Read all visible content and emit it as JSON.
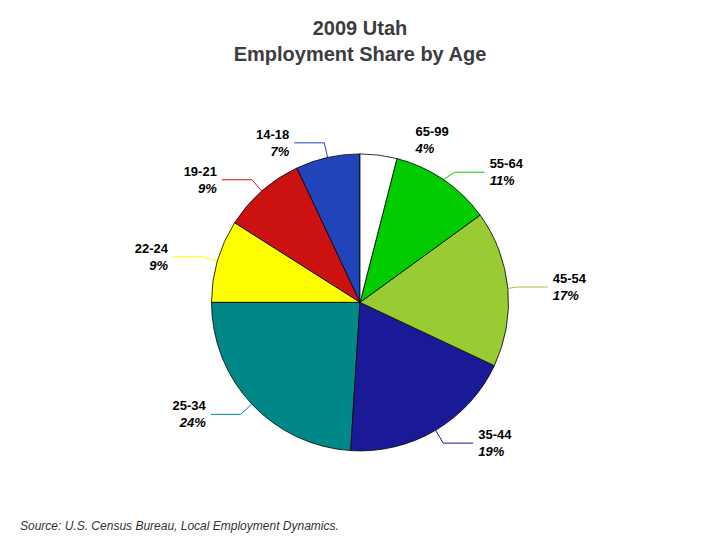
{
  "chart_data": {
    "type": "pie",
    "title": "2009 Utah\nEmployment Share by Age",
    "categories": [
      "14-18",
      "19-21",
      "22-24",
      "25-34",
      "35-44",
      "45-54",
      "55-64",
      "65-99"
    ],
    "values": [
      7,
      9,
      9,
      24,
      19,
      17,
      11,
      4
    ],
    "value_labels": [
      "7%",
      "9%",
      "9%",
      "24%",
      "19%",
      "17%",
      "11%",
      "4%"
    ],
    "colors": [
      "#2244bb",
      "#cc1111",
      "#ffff00",
      "#008888",
      "#1a1a99",
      "#99cc33",
      "#00cc00",
      "#ffffff"
    ],
    "data_labels": true,
    "annotations": [
      "Source: U.S. Census Bureau, Local Employment Dynamics."
    ]
  }
}
